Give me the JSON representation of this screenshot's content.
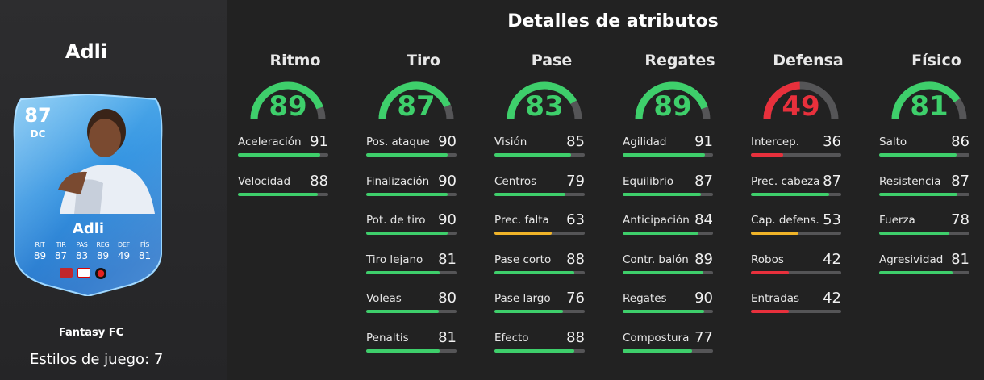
{
  "player": {
    "name": "Adli",
    "card_rating": "87",
    "card_position": "DC",
    "card_name": "Adli",
    "card_stats": [
      {
        "label": "RIT",
        "value": "89"
      },
      {
        "label": "TIR",
        "value": "87"
      },
      {
        "label": "PAS",
        "value": "83"
      },
      {
        "label": "REG",
        "value": "89"
      },
      {
        "label": "DEF",
        "value": "49"
      },
      {
        "label": "FÍS",
        "value": "81"
      }
    ],
    "program": "Fantasy FC",
    "playstyles": "Estilos de juego: 7"
  },
  "section_title": "Detalles de atributos",
  "colors": {
    "green": "#3ecf6b",
    "yellow": "#f0b429",
    "red": "#e8303c",
    "track": "#555557"
  },
  "columns": [
    {
      "title": "Ritmo",
      "value": "89",
      "level": 89,
      "color": "green",
      "stats": [
        {
          "name": "Aceleración",
          "value": "91",
          "level": 91,
          "color": "green"
        },
        {
          "name": "Velocidad",
          "value": "88",
          "level": 88,
          "color": "green"
        }
      ]
    },
    {
      "title": "Tiro",
      "value": "87",
      "level": 87,
      "color": "green",
      "stats": [
        {
          "name": "Pos. ataque",
          "value": "90",
          "level": 90,
          "color": "green"
        },
        {
          "name": "Finalización",
          "value": "90",
          "level": 90,
          "color": "green"
        },
        {
          "name": "Pot. de tiro",
          "value": "90",
          "level": 90,
          "color": "green"
        },
        {
          "name": "Tiro lejano",
          "value": "81",
          "level": 81,
          "color": "green"
        },
        {
          "name": "Voleas",
          "value": "80",
          "level": 80,
          "color": "green"
        },
        {
          "name": "Penaltis",
          "value": "81",
          "level": 81,
          "color": "green"
        }
      ]
    },
    {
      "title": "Pase",
      "value": "83",
      "level": 83,
      "color": "green",
      "stats": [
        {
          "name": "Visión",
          "value": "85",
          "level": 85,
          "color": "green"
        },
        {
          "name": "Centros",
          "value": "79",
          "level": 79,
          "color": "green"
        },
        {
          "name": "Prec. falta",
          "value": "63",
          "level": 63,
          "color": "yellow"
        },
        {
          "name": "Pase corto",
          "value": "88",
          "level": 88,
          "color": "green"
        },
        {
          "name": "Pase largo",
          "value": "76",
          "level": 76,
          "color": "green"
        },
        {
          "name": "Efecto",
          "value": "88",
          "level": 88,
          "color": "green"
        }
      ]
    },
    {
      "title": "Regates",
      "value": "89",
      "level": 89,
      "color": "green",
      "stats": [
        {
          "name": "Agilidad",
          "value": "91",
          "level": 91,
          "color": "green"
        },
        {
          "name": "Equilibrio",
          "value": "87",
          "level": 87,
          "color": "green"
        },
        {
          "name": "Anticipación",
          "value": "84",
          "level": 84,
          "color": "green"
        },
        {
          "name": "Contr. balón",
          "value": "89",
          "level": 89,
          "color": "green"
        },
        {
          "name": "Regates",
          "value": "90",
          "level": 90,
          "color": "green"
        },
        {
          "name": "Compostura",
          "value": "77",
          "level": 77,
          "color": "green"
        }
      ]
    },
    {
      "title": "Defensa",
      "value": "49",
      "level": 49,
      "color": "red",
      "stats": [
        {
          "name": "Intercep.",
          "value": "36",
          "level": 36,
          "color": "red"
        },
        {
          "name": "Prec. cabeza",
          "value": "87",
          "level": 87,
          "color": "green"
        },
        {
          "name": "Cap. defens.",
          "value": "53",
          "level": 53,
          "color": "yellow"
        },
        {
          "name": "Robos",
          "value": "42",
          "level": 42,
          "color": "red"
        },
        {
          "name": "Entradas",
          "value": "42",
          "level": 42,
          "color": "red"
        }
      ]
    },
    {
      "title": "Físico",
      "value": "81",
      "level": 81,
      "color": "green",
      "stats": [
        {
          "name": "Salto",
          "value": "86",
          "level": 86,
          "color": "green"
        },
        {
          "name": "Resistencia",
          "value": "87",
          "level": 87,
          "color": "green"
        },
        {
          "name": "Fuerza",
          "value": "78",
          "level": 78,
          "color": "green"
        },
        {
          "name": "Agresividad",
          "value": "81",
          "level": 81,
          "color": "green"
        }
      ]
    }
  ]
}
